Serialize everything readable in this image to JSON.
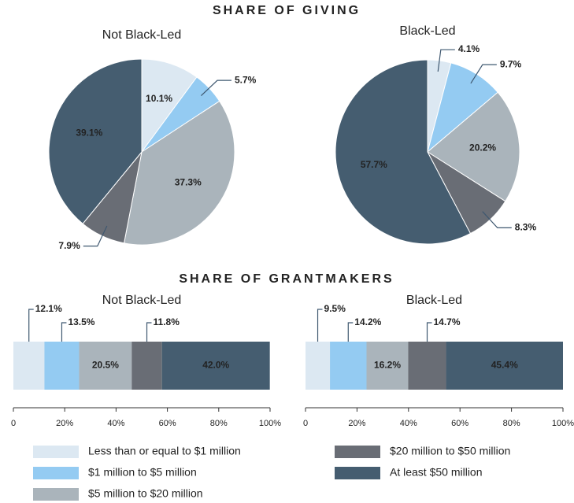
{
  "sections": [
    "SHARE OF GIVING",
    "SHARE OF GRANTMAKERS"
  ],
  "legend": {
    "names": [
      "Less than or equal to $1 million",
      "$1 million to $5 million",
      "$5 million to $20 million",
      "$20 million to $50 million",
      "At least $50 million"
    ],
    "colors": [
      "#dce8f2",
      "#94cbf2",
      "#aab4bb",
      "#696d75",
      "#455d70"
    ]
  },
  "chart_data": [
    {
      "type": "pie",
      "title": "Not Black-Led",
      "values": [
        10.1,
        5.7,
        37.3,
        7.9,
        39.1
      ],
      "value_labels": [
        "10.1%",
        "5.7%",
        "37.3%",
        "7.9%",
        "39.1%"
      ]
    },
    {
      "type": "pie",
      "title": "Black-Led",
      "values": [
        4.1,
        9.7,
        20.2,
        8.3,
        57.7
      ],
      "value_labels": [
        "4.1%",
        "9.7%",
        "20.2%",
        "8.3%",
        "57.7%"
      ]
    },
    {
      "type": "stacked-bar",
      "title": "Not Black-Led",
      "values": [
        12.1,
        13.5,
        20.5,
        11.8,
        42.0
      ],
      "value_labels": [
        "12.1%",
        "13.5%",
        "20.5%",
        "11.8%",
        "42.0%"
      ],
      "xlim": [
        0,
        100
      ],
      "xticks": [
        0,
        {
          "value": 20,
          "label": "20%"
        },
        {
          "value": 40,
          "label": "40%"
        },
        {
          "value": 60,
          "label": "60%"
        },
        {
          "value": 80,
          "label": "80%"
        },
        {
          "value": 100,
          "label": "100%"
        }
      ]
    },
    {
      "type": "stacked-bar",
      "title": "Black-Led",
      "values": [
        9.5,
        14.2,
        16.2,
        14.7,
        45.4
      ],
      "value_labels": [
        "9.5%",
        "14.2%",
        "16.2%",
        "14.7%",
        "45.4%"
      ],
      "xlim": [
        0,
        100
      ],
      "xticks": [
        0,
        {
          "value": 20,
          "label": "20%"
        },
        {
          "value": 40,
          "label": "40%"
        },
        {
          "value": 60,
          "label": "60%"
        },
        {
          "value": 80,
          "label": "80%"
        },
        {
          "value": 100,
          "label": "100%"
        }
      ]
    }
  ]
}
